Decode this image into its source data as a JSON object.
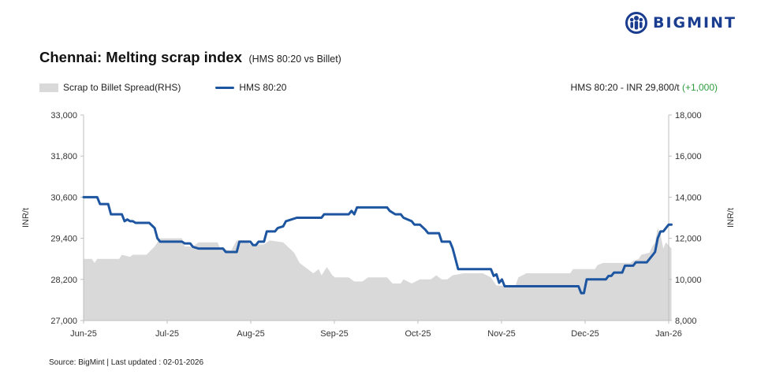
{
  "brand": {
    "name": "BIGMINT"
  },
  "title": "Chennai: Melting scrap index",
  "subtitle": "(HMS 80:20 vs Billet)",
  "headline": {
    "text": "HMS 80:20 - INR 29,800/t",
    "change": "(+1,000)",
    "change_color": "#2e9c3f"
  },
  "source": "Source: BigMint | Last updated : 02-01-2026",
  "colors": {
    "line": "#1d55a0",
    "area": "#d9d9d9",
    "brand": "#1a3d8f"
  },
  "chart_data": {
    "type": "line",
    "x_axis": {
      "ticks": [
        "Jun-25",
        "Jul-25",
        "Aug-25",
        "Sep-25",
        "Oct-25",
        "Nov-25",
        "Dec-25",
        "Jan-26"
      ],
      "range": [
        "2025-06-01",
        "2026-01-01"
      ]
    },
    "y_left": {
      "label": "INR/t",
      "ticks": [
        "27,000",
        "28,200",
        "29,400",
        "30,600",
        "31,800",
        "33,000"
      ],
      "range": [
        27000,
        33000
      ]
    },
    "y_right": {
      "label": "INR/t",
      "ticks": [
        "8,000",
        "10,000",
        "12,000",
        "14,000",
        "16,000",
        "18,000"
      ],
      "range": [
        8000,
        18000
      ]
    },
    "grid": false,
    "legend_position": "top-left",
    "series": [
      {
        "name": "Scrap to Billet Spread(RHS)",
        "type": "area",
        "axis": "right",
        "points": [
          [
            "2025-06-01",
            11000
          ],
          [
            "2025-06-04",
            11000
          ],
          [
            "2025-06-05",
            10800
          ],
          [
            "2025-06-06",
            11000
          ],
          [
            "2025-06-14",
            11000
          ],
          [
            "2025-06-15",
            11200
          ],
          [
            "2025-06-18",
            11100
          ],
          [
            "2025-06-19",
            11200
          ],
          [
            "2025-06-24",
            11200
          ],
          [
            "2025-06-27",
            11600
          ],
          [
            "2025-06-29",
            12000
          ],
          [
            "2025-07-07",
            12000
          ],
          [
            "2025-07-08",
            11600
          ],
          [
            "2025-07-11",
            11600
          ],
          [
            "2025-07-13",
            11800
          ],
          [
            "2025-07-20",
            11800
          ],
          [
            "2025-07-21",
            11500
          ],
          [
            "2025-07-25",
            11400
          ],
          [
            "2025-07-27",
            11900
          ],
          [
            "2025-07-30",
            11900
          ],
          [
            "2025-08-01",
            11700
          ],
          [
            "2025-08-06",
            11700
          ],
          [
            "2025-08-08",
            11900
          ],
          [
            "2025-08-13",
            11800
          ],
          [
            "2025-08-17",
            11300
          ],
          [
            "2025-08-19",
            10800
          ],
          [
            "2025-08-22",
            10500
          ],
          [
            "2025-08-24",
            10300
          ],
          [
            "2025-08-26",
            10500
          ],
          [
            "2025-08-27",
            10200
          ],
          [
            "2025-08-29",
            10600
          ],
          [
            "2025-08-31",
            10200
          ],
          [
            "2025-09-01",
            10100
          ],
          [
            "2025-09-06",
            10100
          ],
          [
            "2025-09-08",
            9900
          ],
          [
            "2025-09-11",
            9900
          ],
          [
            "2025-09-13",
            10100
          ],
          [
            "2025-09-20",
            10100
          ],
          [
            "2025-09-22",
            9800
          ],
          [
            "2025-09-25",
            9800
          ],
          [
            "2025-09-26",
            10000
          ],
          [
            "2025-09-29",
            9800
          ],
          [
            "2025-10-02",
            10000
          ],
          [
            "2025-10-06",
            10000
          ],
          [
            "2025-10-08",
            10200
          ],
          [
            "2025-10-10",
            10000
          ],
          [
            "2025-10-12",
            10000
          ],
          [
            "2025-10-14",
            10200
          ],
          [
            "2025-10-18",
            10300
          ],
          [
            "2025-10-25",
            10300
          ],
          [
            "2025-10-28",
            10100
          ],
          [
            "2025-10-30",
            9700
          ],
          [
            "2025-11-06",
            9700
          ],
          [
            "2025-11-07",
            10100
          ],
          [
            "2025-11-10",
            10300
          ],
          [
            "2025-11-26",
            10300
          ],
          [
            "2025-11-27",
            10500
          ],
          [
            "2025-12-05",
            10500
          ],
          [
            "2025-12-06",
            10700
          ],
          [
            "2025-12-08",
            10800
          ],
          [
            "2025-12-18",
            10800
          ],
          [
            "2025-12-19",
            10900
          ],
          [
            "2025-12-21",
            11000
          ],
          [
            "2025-12-22",
            11200
          ],
          [
            "2025-12-25",
            11300
          ],
          [
            "2025-12-26",
            11600
          ],
          [
            "2025-12-27",
            11800
          ],
          [
            "2025-12-28",
            12500
          ],
          [
            "2025-12-29",
            12200
          ],
          [
            "2025-12-30",
            11500
          ],
          [
            "2025-12-31",
            11800
          ],
          [
            "2026-01-02",
            11500
          ]
        ]
      },
      {
        "name": "HMS 80:20",
        "type": "line",
        "axis": "left",
        "points": [
          [
            "2025-06-01",
            30600
          ],
          [
            "2025-06-06",
            30600
          ],
          [
            "2025-06-07",
            30400
          ],
          [
            "2025-06-10",
            30400
          ],
          [
            "2025-06-11",
            30100
          ],
          [
            "2025-06-15",
            30100
          ],
          [
            "2025-06-16",
            29900
          ],
          [
            "2025-06-17",
            29950
          ],
          [
            "2025-06-18",
            29900
          ],
          [
            "2025-06-19",
            29900
          ],
          [
            "2025-06-20",
            29850
          ],
          [
            "2025-06-25",
            29850
          ],
          [
            "2025-06-27",
            29700
          ],
          [
            "2025-06-28",
            29400
          ],
          [
            "2025-06-29",
            29300
          ],
          [
            "2025-07-07",
            29300
          ],
          [
            "2025-07-08",
            29250
          ],
          [
            "2025-07-10",
            29250
          ],
          [
            "2025-07-11",
            29150
          ],
          [
            "2025-07-13",
            29100
          ],
          [
            "2025-07-22",
            29100
          ],
          [
            "2025-07-23",
            29000
          ],
          [
            "2025-07-27",
            29000
          ],
          [
            "2025-07-28",
            29300
          ],
          [
            "2025-08-01",
            29300
          ],
          [
            "2025-08-02",
            29200
          ],
          [
            "2025-08-03",
            29200
          ],
          [
            "2025-08-04",
            29300
          ],
          [
            "2025-08-06",
            29300
          ],
          [
            "2025-08-07",
            29600
          ],
          [
            "2025-08-10",
            29600
          ],
          [
            "2025-08-11",
            29700
          ],
          [
            "2025-08-13",
            29750
          ],
          [
            "2025-08-14",
            29900
          ],
          [
            "2025-08-18",
            30000
          ],
          [
            "2025-08-27",
            30000
          ],
          [
            "2025-08-28",
            30100
          ],
          [
            "2025-09-06",
            30100
          ],
          [
            "2025-09-07",
            30200
          ],
          [
            "2025-09-08",
            30100
          ],
          [
            "2025-09-09",
            30300
          ],
          [
            "2025-09-20",
            30300
          ],
          [
            "2025-09-21",
            30200
          ],
          [
            "2025-09-23",
            30100
          ],
          [
            "2025-09-25",
            30100
          ],
          [
            "2025-09-26",
            30000
          ],
          [
            "2025-09-29",
            29900
          ],
          [
            "2025-09-30",
            29800
          ],
          [
            "2025-10-02",
            29800
          ],
          [
            "2025-10-04",
            29650
          ],
          [
            "2025-10-05",
            29550
          ],
          [
            "2025-10-09",
            29550
          ],
          [
            "2025-10-10",
            29300
          ],
          [
            "2025-10-13",
            29300
          ],
          [
            "2025-10-14",
            29100
          ],
          [
            "2025-10-15",
            28800
          ],
          [
            "2025-10-16",
            28500
          ],
          [
            "2025-10-28",
            28500
          ],
          [
            "2025-10-29",
            28300
          ],
          [
            "2025-10-30",
            28350
          ],
          [
            "2025-10-31",
            28100
          ],
          [
            "2025-11-01",
            28200
          ],
          [
            "2025-11-02",
            28000
          ],
          [
            "2025-11-29",
            28000
          ],
          [
            "2025-11-30",
            27800
          ],
          [
            "2025-12-01",
            27800
          ],
          [
            "2025-12-02",
            28200
          ],
          [
            "2025-12-09",
            28200
          ],
          [
            "2025-12-10",
            28300
          ],
          [
            "2025-12-11",
            28300
          ],
          [
            "2025-12-12",
            28400
          ],
          [
            "2025-12-15",
            28400
          ],
          [
            "2025-12-16",
            28600
          ],
          [
            "2025-12-19",
            28600
          ],
          [
            "2025-12-20",
            28700
          ],
          [
            "2025-12-24",
            28700
          ],
          [
            "2025-12-26",
            28900
          ],
          [
            "2025-12-27",
            29000
          ],
          [
            "2025-12-28",
            29400
          ],
          [
            "2025-12-29",
            29600
          ],
          [
            "2025-12-30",
            29600
          ],
          [
            "2025-12-31",
            29700
          ],
          [
            "2026-01-01",
            29800
          ],
          [
            "2026-01-02",
            29800
          ]
        ]
      }
    ]
  }
}
